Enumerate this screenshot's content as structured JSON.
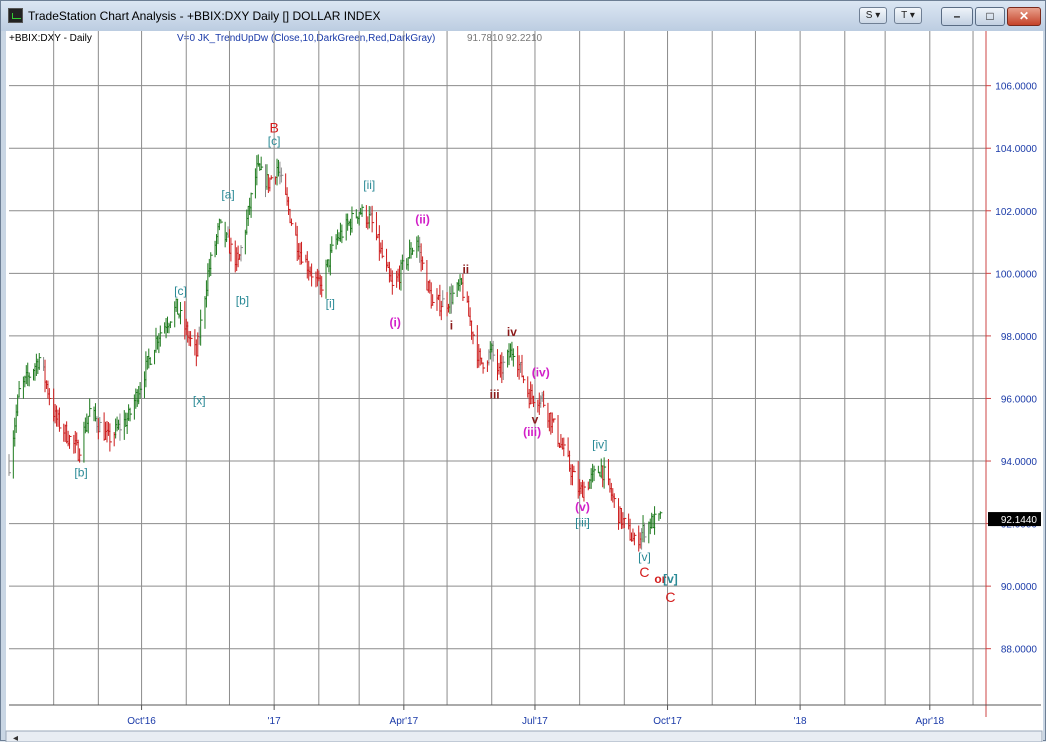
{
  "window": {
    "title": "TradeStation Chart Analysis - +BBIX:DXY Daily [] DOLLAR INDEX",
    "icon": "chart-app-icon",
    "toolbar_buttons": [
      {
        "label": "S"
      },
      {
        "label": "T"
      }
    ]
  },
  "header": {
    "symbol": "+BBIX:DXY - Daily",
    "indicator": "V=0  JK_TrendUpDw  (Close,10,DarkGreen,Red,DarkGray)",
    "values": "91.7810  92.2210"
  },
  "colors": {
    "up": "#1e7a1e",
    "down": "#cc1b1b",
    "neutral": "#8a8a8a",
    "grid": "#8c8c8c",
    "axis_text": "#1a3aa8",
    "wave_primary": "#d41c1c",
    "wave_minor": "#2a8a96",
    "wave_minute": "#d21fc8",
    "wave_minuette": "#8b1a1a"
  },
  "chart_data": {
    "type": "bar",
    "subtype": "ohlc-daily",
    "title": "DOLLAR INDEX",
    "xlabel": "",
    "ylabel": "",
    "ylim": [
      86.2,
      107.3
    ],
    "y_ticks": [
      "106.0000",
      "104.0000",
      "102.0000",
      "100.0000",
      "98.0000",
      "96.0000",
      "94.0000",
      "92.0000",
      "90.0000",
      "88.0000"
    ],
    "y_tick_values": [
      106,
      104,
      102,
      100,
      98,
      96,
      94,
      92,
      90,
      88
    ],
    "x_ticks": [
      "Oct'16",
      "'17",
      "Apr'17",
      "Jul'17",
      "Oct'17",
      "'18",
      "Apr'18"
    ],
    "x_tick_dates": [
      "2016-10-01",
      "2017-01-01",
      "2017-04-01",
      "2017-07-01",
      "2017-10-01",
      "2018-01-01",
      "2018-04-01"
    ],
    "x_range": [
      "2016-07-01",
      "2018-05-10"
    ],
    "last_price": "92.1440",
    "last_value": 92.144,
    "grid": true,
    "series": [
      {
        "path": [
          [
            "2016-07-01",
            93.9
          ],
          [
            "2016-07-08",
            96.2
          ],
          [
            "2016-07-22",
            97.3
          ],
          [
            "2016-08-02",
            95.4
          ],
          [
            "2016-08-18",
            94.3
          ],
          [
            "2016-08-26",
            95.6
          ],
          [
            "2016-09-08",
            94.7
          ],
          [
            "2016-09-22",
            95.4
          ],
          [
            "2016-10-12",
            98.0
          ],
          [
            "2016-10-25",
            98.9
          ],
          [
            "2016-11-08",
            97.4
          ],
          [
            "2016-11-16",
            100.0
          ],
          [
            "2016-11-24",
            101.5
          ],
          [
            "2016-12-07",
            100.3
          ],
          [
            "2016-12-20",
            103.3
          ],
          [
            "2016-12-28",
            102.9
          ],
          [
            "2017-01-03",
            103.4
          ],
          [
            "2017-01-18",
            100.8
          ],
          [
            "2017-02-02",
            99.5
          ],
          [
            "2017-02-12",
            101.0
          ],
          [
            "2017-03-01",
            102.0
          ],
          [
            "2017-03-09",
            101.7
          ],
          [
            "2017-03-24",
            99.5
          ],
          [
            "2017-04-10",
            101.1
          ],
          [
            "2017-04-12",
            100.6
          ],
          [
            "2017-04-21",
            99.0
          ],
          [
            "2017-05-01",
            99.1
          ],
          [
            "2017-05-11",
            99.6
          ],
          [
            "2017-05-24",
            97.1
          ],
          [
            "2017-06-01",
            97.5
          ],
          [
            "2017-06-06",
            96.8
          ],
          [
            "2017-06-16",
            97.6
          ],
          [
            "2017-06-27",
            96.1
          ],
          [
            "2017-07-06",
            96.0
          ],
          [
            "2017-07-14",
            95.1
          ],
          [
            "2017-08-01",
            93.0
          ],
          [
            "2017-08-16",
            93.8
          ],
          [
            "2017-08-28",
            92.3
          ],
          [
            "2017-09-08",
            91.4
          ],
          [
            "2017-09-18",
            92.0
          ],
          [
            "2017-09-26",
            92.14
          ]
        ]
      }
    ],
    "annotations": [
      {
        "text": "[b]",
        "style": "wave_minor",
        "x": "2016-08-20",
        "y": 93.5
      },
      {
        "text": "[c]",
        "style": "wave_minor",
        "x": "2016-10-28",
        "y": 99.3
      },
      {
        "text": "[x]",
        "style": "wave_minor",
        "x": "2016-11-10",
        "y": 95.8
      },
      {
        "text": "[a]",
        "style": "wave_minor",
        "x": "2016-11-30",
        "y": 102.4
      },
      {
        "text": "[b]",
        "style": "wave_minor",
        "x": "2016-12-10",
        "y": 99.0
      },
      {
        "text": "B",
        "style": "wave_primary",
        "x": "2017-01-01",
        "y": 104.5
      },
      {
        "text": "[c]",
        "style": "wave_minor",
        "x": "2017-01-01",
        "y": 104.1
      },
      {
        "text": "[i]",
        "style": "wave_minor",
        "x": "2017-02-09",
        "y": 98.9
      },
      {
        "text": "[ii]",
        "style": "wave_minor",
        "x": "2017-03-08",
        "y": 102.7
      },
      {
        "text": "(i)",
        "style": "wave_minute",
        "x": "2017-03-26",
        "y": 98.3
      },
      {
        "text": "(ii)",
        "style": "wave_minute",
        "x": "2017-04-14",
        "y": 101.6
      },
      {
        "text": "i",
        "style": "wave_minuette",
        "x": "2017-05-04",
        "y": 98.2
      },
      {
        "text": "ii",
        "style": "wave_minuette",
        "x": "2017-05-14",
        "y": 100.0
      },
      {
        "text": "iv",
        "style": "wave_minuette",
        "x": "2017-06-15",
        "y": 98.0
      },
      {
        "text": "iii",
        "style": "wave_minuette",
        "x": "2017-06-03",
        "y": 96.0
      },
      {
        "text": "(iv)",
        "style": "wave_minute",
        "x": "2017-07-05",
        "y": 96.7
      },
      {
        "text": "v",
        "style": "wave_minuette",
        "x": "2017-07-01",
        "y": 95.2
      },
      {
        "text": "(iii)",
        "style": "wave_minute",
        "x": "2017-06-29",
        "y": 94.8
      },
      {
        "text": "[iv]",
        "style": "wave_minor",
        "x": "2017-08-15",
        "y": 94.4
      },
      {
        "text": "(v)",
        "style": "wave_minute",
        "x": "2017-08-03",
        "y": 92.4
      },
      {
        "text": "[iii]",
        "style": "wave_minor",
        "x": "2017-08-03",
        "y": 91.9
      },
      {
        "text": "[v]",
        "style": "wave_minor",
        "x": "2017-09-15",
        "y": 90.8
      },
      {
        "text": "C",
        "style": "wave_primary",
        "x": "2017-09-15",
        "y": 90.3
      },
      {
        "text": "or",
        "style": "wave_primary",
        "x": "2017-09-26",
        "y": 90.1
      },
      {
        "text": "[v]",
        "style": "wave_minor",
        "x": "2017-10-03",
        "y": 90.1
      },
      {
        "text": "C",
        "style": "wave_primary",
        "x": "2017-10-03",
        "y": 89.5
      }
    ]
  }
}
